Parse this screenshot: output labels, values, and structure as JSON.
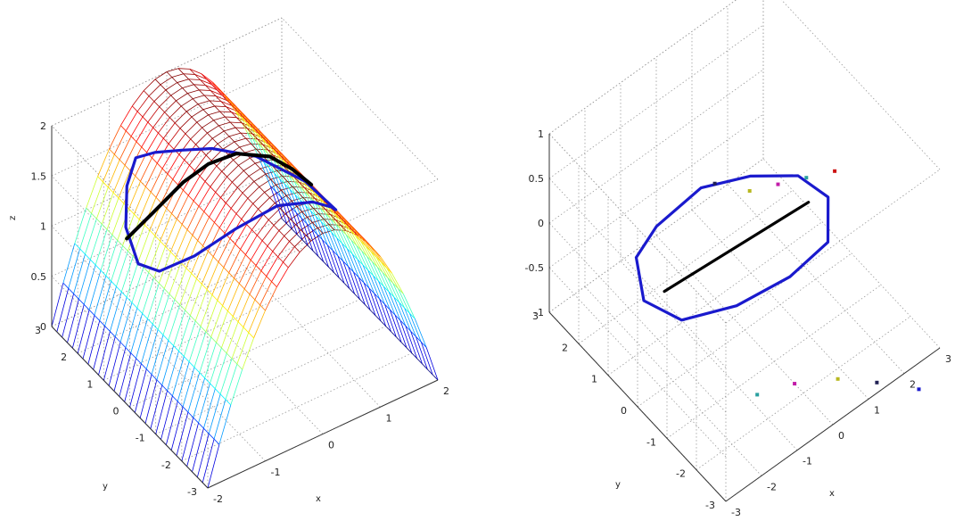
{
  "figure": {
    "layout": "two 3-D axes side by side",
    "grid": true,
    "box": true
  },
  "chart_data": [
    {
      "type": "surface",
      "title": "",
      "xlabel": "x",
      "ylabel": "y",
      "zlabel": "z",
      "xlim": [
        -2,
        2
      ],
      "ylim": [
        -3,
        3
      ],
      "zlim": [
        0,
        2
      ],
      "xticks": [
        "-2",
        "-1",
        "0",
        "1",
        "2"
      ],
      "yticks": [
        "-3",
        "-2",
        "-1",
        "0",
        "1",
        "2",
        "3"
      ],
      "zticks": [
        "0",
        "0.5",
        "1",
        "1.5",
        "2"
      ],
      "surface": {
        "function": "z = 2 - x^2/2",
        "x_range": [
          -2,
          2
        ],
        "y_range": [
          -3,
          3
        ],
        "mesh_x_lines": 21,
        "mesh_y_lines": 31,
        "colormap": "jet"
      },
      "curves": [
        {
          "name": "",
          "style": "blue loop on the surface",
          "color": "#1a1acd",
          "points": [
            [
              0.95,
              -1.4,
              1.55
            ],
            [
              0.6,
              -1.0,
              1.82
            ],
            [
              0.1,
              -0.2,
              1.99
            ],
            [
              -0.3,
              0.6,
              1.96
            ],
            [
              -0.55,
              1.2,
              1.85
            ],
            [
              -0.75,
              1.8,
              1.72
            ],
            [
              -0.9,
              2.2,
              1.6
            ],
            [
              -1.1,
              2.1,
              1.4
            ],
            [
              -1.3,
              1.7,
              1.15
            ],
            [
              -1.4,
              1.0,
              1.0
            ],
            [
              -1.35,
              0.3,
              1.1
            ],
            [
              -1.1,
              -0.5,
              1.4
            ],
            [
              -0.7,
              -1.2,
              1.75
            ],
            [
              -0.2,
              -1.7,
              1.98
            ],
            [
              0.3,
              -1.95,
              1.95
            ],
            [
              0.7,
              -1.8,
              1.75
            ],
            [
              0.95,
              -1.4,
              1.55
            ]
          ]
        },
        {
          "name": "",
          "style": "black path on the surface",
          "color": "#000000",
          "points": [
            [
              -1.35,
              1.55,
              1.09
            ],
            [
              -1.1,
              1.1,
              1.4
            ],
            [
              -0.75,
              0.7,
              1.72
            ],
            [
              -0.45,
              0.4,
              1.9
            ],
            [
              -0.1,
              0.1,
              1.99
            ],
            [
              0.3,
              -0.3,
              1.96
            ],
            [
              0.55,
              -0.6,
              1.85
            ],
            [
              0.75,
              -0.9,
              1.72
            ]
          ]
        }
      ]
    },
    {
      "type": "line3d",
      "title": "",
      "xlabel": "x",
      "ylabel": "y",
      "zlabel": "",
      "xlim": [
        -3,
        3
      ],
      "ylim": [
        -3,
        3
      ],
      "zlim": [
        -1,
        1
      ],
      "xticks": [
        "-3",
        "-2",
        "-1",
        "0",
        "1",
        "2",
        "3"
      ],
      "yticks": [
        "-3",
        "-2",
        "-1",
        "0",
        "1",
        "2",
        "3"
      ],
      "zticks": [
        "-1",
        "-0.5",
        "0",
        "0.5",
        "1"
      ],
      "series": [
        {
          "name": "",
          "style": "blue ellipse",
          "color": "#1a1acd",
          "points": [
            [
              -1.8,
              1.5,
              -0.2
            ],
            [
              -0.9,
              1.9,
              -0.25
            ],
            [
              0.1,
              1.6,
              0.0
            ],
            [
              0.9,
              0.9,
              0.15
            ],
            [
              1.5,
              0.0,
              0.3
            ],
            [
              1.6,
              -0.9,
              0.35
            ],
            [
              1.1,
              -1.5,
              0.2
            ],
            [
              0.2,
              -1.3,
              0.0
            ],
            [
              -0.8,
              -0.7,
              -0.25
            ],
            [
              -1.6,
              0.2,
              -0.5
            ],
            [
              -2.0,
              1.0,
              -0.45
            ],
            [
              -1.8,
              1.5,
              -0.2
            ]
          ]
        },
        {
          "name": "",
          "style": "black line",
          "color": "#000000",
          "points": [
            [
              -1.3,
              1.15,
              -0.6
            ],
            [
              1.05,
              -0.9,
              0.45
            ]
          ]
        }
      ],
      "markers": [
        {
          "color": "#cc1111",
          "x": 0.3,
          "y": -2.7,
          "z": 1.65
        },
        {
          "color": "#2aa0a0",
          "x": 0.0,
          "y": -2.1,
          "z": 1.45
        },
        {
          "color": "#c21ca8",
          "x": -0.3,
          "y": -1.5,
          "z": 1.25
        },
        {
          "color": "#b8b820",
          "x": -0.6,
          "y": -0.9,
          "z": 1.05
        },
        {
          "color": "#222255",
          "x": -1.0,
          "y": -0.2,
          "z": 1.0
        },
        {
          "color": "#1a1acd",
          "x": 2.0,
          "y": -3.5,
          "z": -1.0
        },
        {
          "color": "#222255",
          "x": 1.4,
          "y": -2.8,
          "z": -1.0
        },
        {
          "color": "#b8b820",
          "x": 0.8,
          "y": -2.2,
          "z": -1.0
        },
        {
          "color": "#c21ca8",
          "x": 0.0,
          "y": -1.7,
          "z": -1.0
        },
        {
          "color": "#2aa0a0",
          "x": -0.8,
          "y": -1.4,
          "z": -1.0
        }
      ]
    }
  ]
}
